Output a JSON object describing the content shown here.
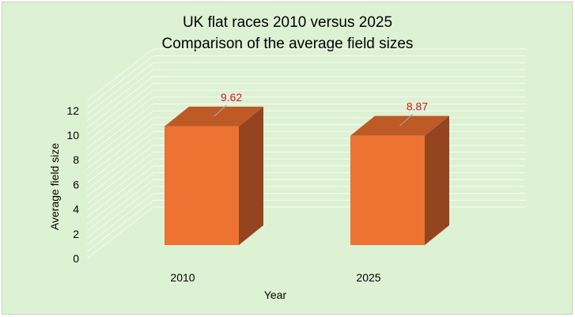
{
  "chart_data": {
    "type": "bar",
    "style": "3d-column",
    "title": "UK flat races 2010 versus 2025",
    "subtitle": "Comparison of the average field sizes",
    "xlabel": "Year",
    "ylabel": "Average field size",
    "categories": [
      "2010",
      "2025"
    ],
    "values": [
      9.62,
      8.87
    ],
    "data_labels": [
      "9.62",
      "8.87"
    ],
    "yticks": [
      "0",
      "2",
      "4",
      "6",
      "8",
      "10",
      "12"
    ],
    "ylim": [
      0,
      12
    ],
    "grid": true,
    "legend": "none"
  },
  "colors": {
    "background": "#dcf2d2",
    "bar_front": "#ed7332",
    "bar_top": "#bd5a26",
    "bar_side": "#954420",
    "data_label": "#e8141c",
    "gridline": "#f6fbf3"
  }
}
